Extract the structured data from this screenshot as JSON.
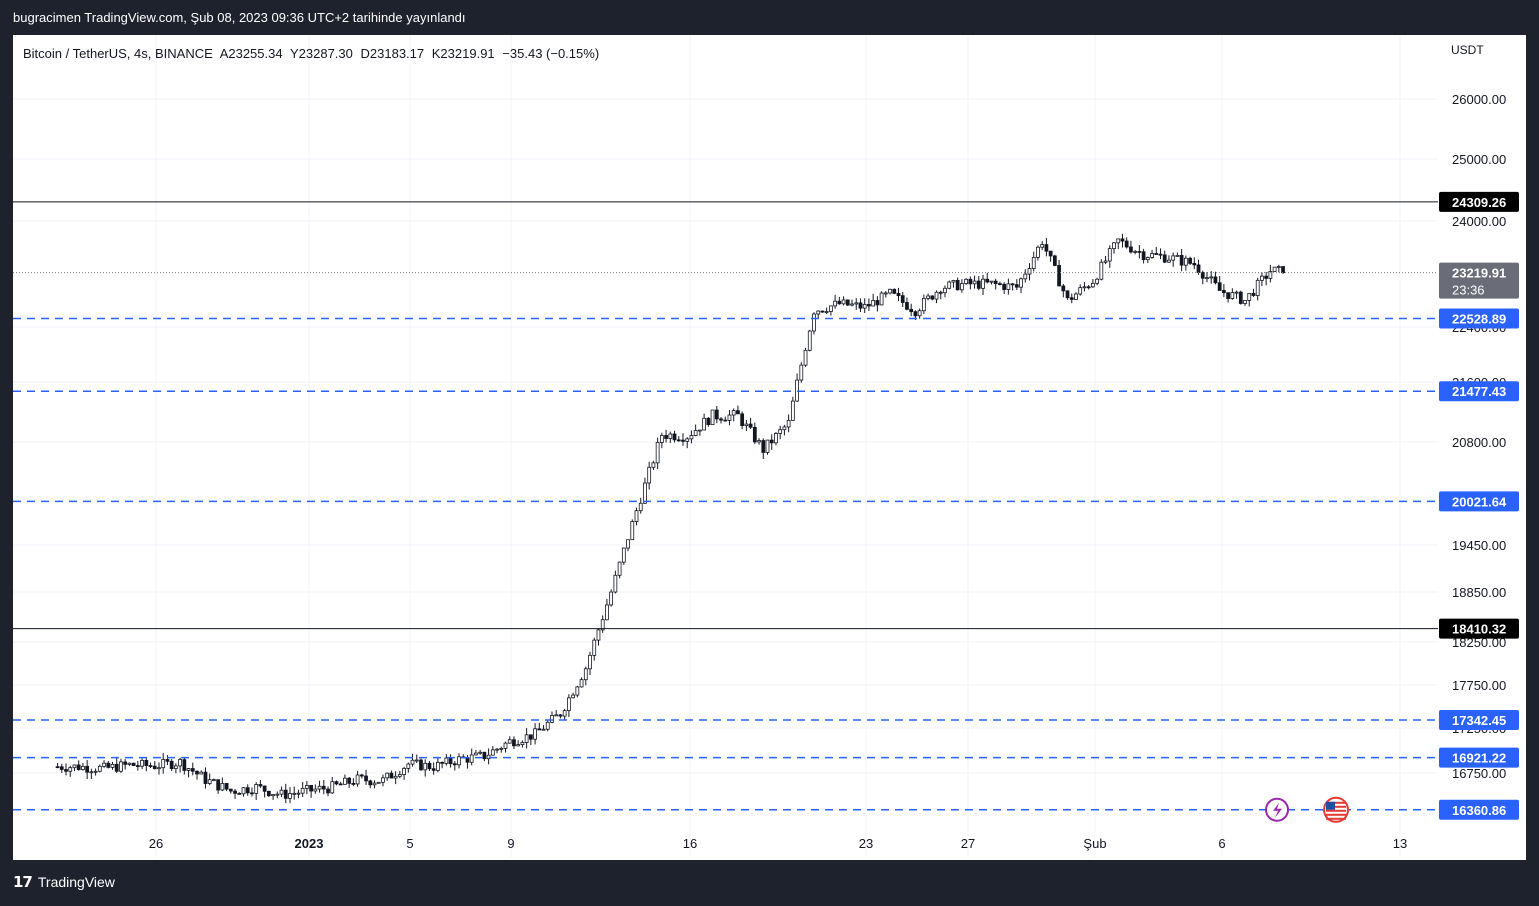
{
  "header": {
    "published_text": "bugracimen TradingView.com, Şub 08, 2023 09:36 UTC+2 tarihinde yayınlandı"
  },
  "symbol": {
    "name": "Bitcoin / TetherUS, 4s, BINANCE",
    "open": "A23255.34",
    "high": "Y23287.30",
    "low": "D23183.17",
    "close": "K23219.91",
    "change": "−35.43 (−0.15%)"
  },
  "footer": {
    "brand": "TradingView"
  },
  "colors": {
    "up": "#131722",
    "dashed_line": "#2962ff",
    "price_badge": "#6a6d78"
  },
  "icons": [
    "lightning-icon",
    "us-flag-icon"
  ],
  "chart_data": {
    "type": "candlestick",
    "currency": "USDT",
    "ylim": [
      16200,
      26600
    ],
    "y_ticks": [
      "26000.00",
      "25000.00",
      "24000.00",
      "22400.00",
      "21600.00",
      "20800.00",
      "19450.00",
      "18850.00",
      "18250.00",
      "17750.00",
      "17250.00",
      "16750.00"
    ],
    "x_ticks": [
      "26",
      "2023",
      "5",
      "9",
      "16",
      "23",
      "27",
      "Şub",
      "6",
      "13"
    ],
    "last_price": {
      "value": "23219.91",
      "countdown": "23:36"
    },
    "horizontal_lines": [
      {
        "value": "24309.26",
        "style": "solid"
      },
      {
        "value": "18410.32",
        "style": "solid"
      }
    ],
    "dashed_levels": [
      "22528.89",
      "21477.43",
      "20021.64",
      "17342.45",
      "16921.22",
      "16360.86"
    ],
    "price_series": [
      {
        "date": "Dec 22",
        "close": 16820
      },
      {
        "date": "Dec 23",
        "close": 16800
      },
      {
        "date": "Dec 24",
        "close": 16840
      },
      {
        "date": "Dec 25",
        "close": 16830
      },
      {
        "date": "Dec 26",
        "close": 16870
      },
      {
        "date": "Dec 27",
        "close": 16680
      },
      {
        "date": "Dec 28",
        "close": 16560
      },
      {
        "date": "Dec 29",
        "close": 16600
      },
      {
        "date": "Dec 30",
        "close": 16520
      },
      {
        "date": "Dec 31",
        "close": 16560
      },
      {
        "date": "Jan 1",
        "close": 16600
      },
      {
        "date": "Jan 2",
        "close": 16680
      },
      {
        "date": "Jan 3",
        "close": 16670
      },
      {
        "date": "Jan 4",
        "close": 16850
      },
      {
        "date": "Jan 5",
        "close": 16820
      },
      {
        "date": "Jan 6",
        "close": 16900
      },
      {
        "date": "Jan 7",
        "close": 16940
      },
      {
        "date": "Jan 8",
        "close": 17100
      },
      {
        "date": "Jan 9",
        "close": 17180
      },
      {
        "date": "Jan 10",
        "close": 17420
      },
      {
        "date": "Jan 11",
        "close": 17950
      },
      {
        "date": "Jan 12",
        "close": 18850
      },
      {
        "date": "Jan 13",
        "close": 19900
      },
      {
        "date": "Jan 14",
        "close": 20900
      },
      {
        "date": "Jan 15",
        "close": 20880
      },
      {
        "date": "Jan 16",
        "close": 21150
      },
      {
        "date": "Jan 17",
        "close": 21150
      },
      {
        "date": "Jan 18",
        "close": 20700
      },
      {
        "date": "Jan 19",
        "close": 21050
      },
      {
        "date": "Jan 20",
        "close": 22650
      },
      {
        "date": "Jan 21",
        "close": 22750
      },
      {
        "date": "Jan 22",
        "close": 22700
      },
      {
        "date": "Jan 23",
        "close": 22900
      },
      {
        "date": "Jan 24",
        "close": 22650
      },
      {
        "date": "Jan 25",
        "close": 23000
      },
      {
        "date": "Jan 26",
        "close": 23050
      },
      {
        "date": "Jan 27",
        "close": 23050
      },
      {
        "date": "Jan 28",
        "close": 23000
      },
      {
        "date": "Jan 29",
        "close": 23700
      },
      {
        "date": "Jan 30",
        "close": 22800
      },
      {
        "date": "Jan 31",
        "close": 23100
      },
      {
        "date": "Feb 1",
        "close": 23700
      },
      {
        "date": "Feb 2",
        "close": 23500
      },
      {
        "date": "Feb 3",
        "close": 23450
      },
      {
        "date": "Feb 4",
        "close": 23350
      },
      {
        "date": "Feb 5",
        "close": 22950
      },
      {
        "date": "Feb 6",
        "close": 22800
      },
      {
        "date": "Feb 7",
        "close": 23250
      },
      {
        "date": "Feb 8",
        "close": 23219.91
      }
    ]
  }
}
